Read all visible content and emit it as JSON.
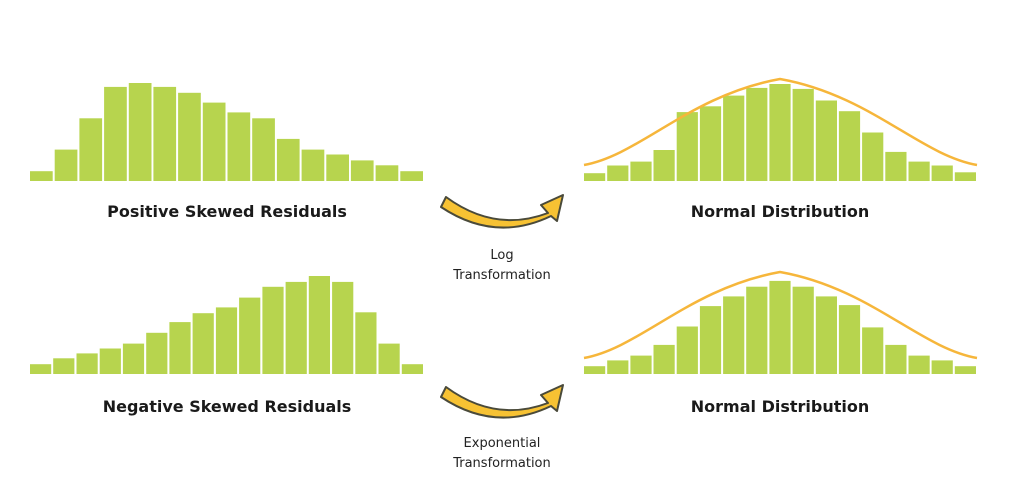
{
  "colors": {
    "bar": "#b7d44e",
    "curve": "#f6b63b",
    "arrow_fill": "#f7c233",
    "arrow_stroke": "#4a4a3a",
    "text": "#1a1a1a"
  },
  "panels": {
    "top_left": {
      "label": "Positive Skewed Residuals",
      "bars": [
        0.1,
        0.32,
        0.64,
        0.96,
        1.0,
        0.96,
        0.9,
        0.8,
        0.7,
        0.64,
        0.43,
        0.32,
        0.27,
        0.21,
        0.16,
        0.1
      ]
    },
    "top_right": {
      "label": "Normal Distribution",
      "bars": [
        0.08,
        0.16,
        0.2,
        0.32,
        0.71,
        0.77,
        0.88,
        0.96,
        1.0,
        0.95,
        0.83,
        0.72,
        0.5,
        0.3,
        0.2,
        0.16,
        0.09
      ]
    },
    "bottom_left": {
      "label": "Negative Skewed Residuals",
      "bars": [
        0.1,
        0.16,
        0.21,
        0.26,
        0.31,
        0.42,
        0.53,
        0.62,
        0.68,
        0.78,
        0.89,
        0.94,
        1.0,
        0.94,
        0.63,
        0.31,
        0.1
      ]
    },
    "bottom_right": {
      "label": "Normal Distribution",
      "bars": [
        0.08,
        0.14,
        0.19,
        0.3,
        0.49,
        0.7,
        0.8,
        0.9,
        0.96,
        0.9,
        0.8,
        0.71,
        0.48,
        0.3,
        0.19,
        0.14,
        0.08
      ]
    }
  },
  "arrows": {
    "top": {
      "line1": "Log",
      "line2": "Transformation",
      "icon": "curved-arrow-icon"
    },
    "bottom": {
      "line1": "Exponential",
      "line2": "Transformation",
      "icon": "curved-arrow-icon"
    }
  }
}
